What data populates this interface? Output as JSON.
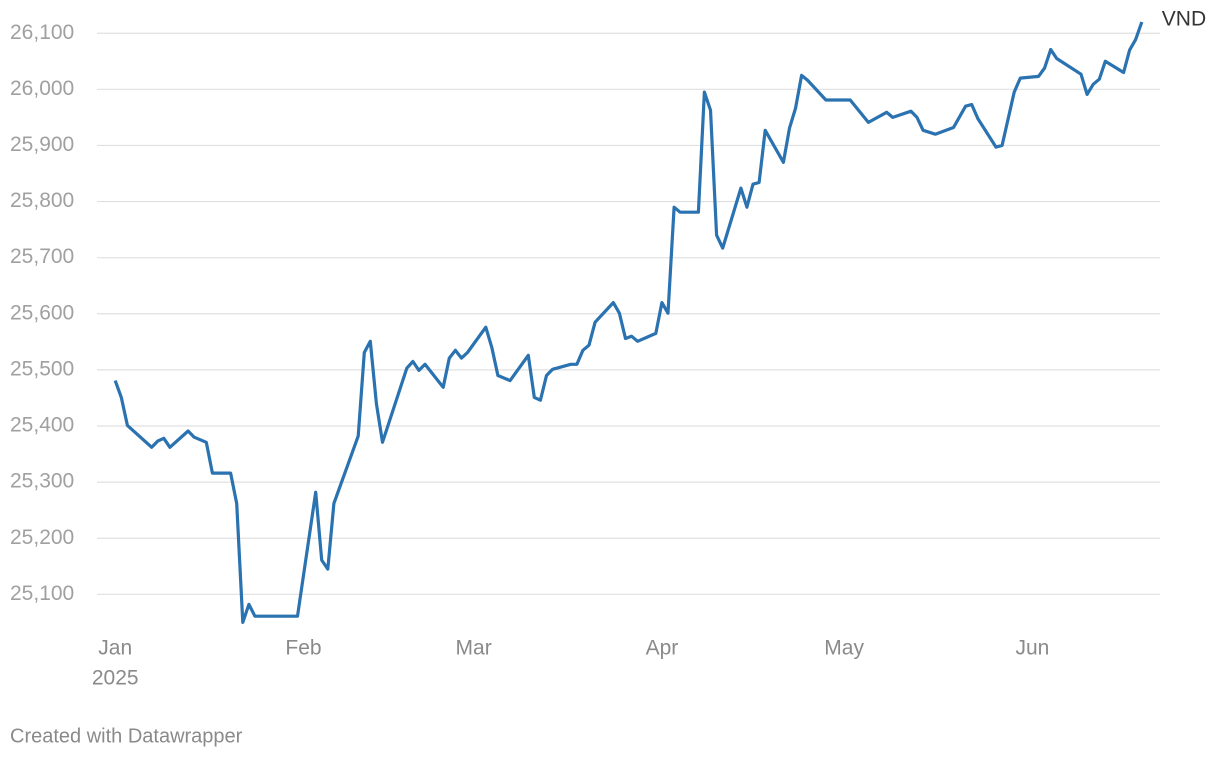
{
  "chart_data": {
    "type": "line",
    "x": [
      1,
      2,
      3,
      7,
      8,
      9,
      10,
      13,
      14,
      16,
      17,
      20,
      21,
      22,
      23,
      24,
      31,
      34,
      35,
      36,
      37,
      41,
      42,
      43,
      44,
      45,
      49,
      50,
      51,
      52,
      55,
      56,
      57,
      58,
      59,
      62,
      63,
      64,
      66,
      69,
      70,
      71,
      72,
      73,
      76,
      77,
      78,
      79,
      80,
      83,
      84,
      85,
      86,
      87,
      90,
      91,
      92,
      93,
      94,
      97,
      98,
      99,
      100,
      101,
      104,
      105,
      106,
      107,
      108,
      111,
      112,
      113,
      114,
      115,
      118,
      122,
      125,
      128,
      129,
      132,
      133,
      134,
      136,
      139,
      141,
      142,
      143,
      146,
      147,
      149,
      150,
      153,
      154,
      155,
      156,
      160,
      161,
      162,
      163,
      164,
      167,
      168,
      169,
      170
    ],
    "series": [
      {
        "name": "VND",
        "color": "#2a72b0",
        "values": [
          25481,
          25451,
          25401,
          25362,
          25373,
          25378,
          25362,
          25391,
          25380,
          25371,
          25316,
          25316,
          25262,
          25050,
          25082,
          25061,
          25061,
          25282,
          25161,
          25145,
          25262,
          25382,
          25531,
          25551,
          25440,
          25371,
          25503,
          25515,
          25499,
          25510,
          25469,
          25521,
          25535,
          25521,
          25531,
          25576,
          25540,
          25490,
          25481,
          25526,
          25451,
          25446,
          25490,
          25501,
          25510,
          25510,
          25535,
          25544,
          25585,
          25620,
          25601,
          25556,
          25560,
          25551,
          25565,
          25620,
          25601,
          25790,
          25781,
          25781,
          25995,
          25963,
          25740,
          25717,
          25824,
          25790,
          25831,
          25834,
          25927,
          25870,
          25931,
          25966,
          26025,
          26016,
          25981,
          25981,
          25941,
          25959,
          25950,
          25961,
          25950,
          25927,
          25920,
          25932,
          25970,
          25973,
          25948,
          25897,
          25900,
          25995,
          26020,
          26023,
          26038,
          26071,
          26055,
          26027,
          25991,
          26009,
          26018,
          26050,
          26030,
          26070,
          26089,
          26120
        ]
      }
    ],
    "xlim": [
      -2,
      173
    ],
    "xticks": [
      {
        "value": 1,
        "label": "Jan"
      },
      {
        "value": 32,
        "label": "Feb"
      },
      {
        "value": 60,
        "label": "Mar"
      },
      {
        "value": 91,
        "label": "Apr"
      },
      {
        "value": 121,
        "label": "May"
      },
      {
        "value": 152,
        "label": "Jun"
      }
    ],
    "x_year": "2025",
    "ylim": [
      25040,
      26120
    ],
    "yticks": [
      {
        "value": 25100,
        "label": "25,100"
      },
      {
        "value": 25200,
        "label": "25,200"
      },
      {
        "value": 25300,
        "label": "25,300"
      },
      {
        "value": 25400,
        "label": "25,400"
      },
      {
        "value": 25500,
        "label": "25,500"
      },
      {
        "value": 25600,
        "label": "25,600"
      },
      {
        "value": 25700,
        "label": "25,700"
      },
      {
        "value": 25800,
        "label": "25,800"
      },
      {
        "value": 25900,
        "label": "25,900"
      },
      {
        "value": 26000,
        "label": "26,000"
      },
      {
        "value": 26100,
        "label": "26,100"
      }
    ],
    "grid": true,
    "credit": "Created with Datawrapper"
  }
}
